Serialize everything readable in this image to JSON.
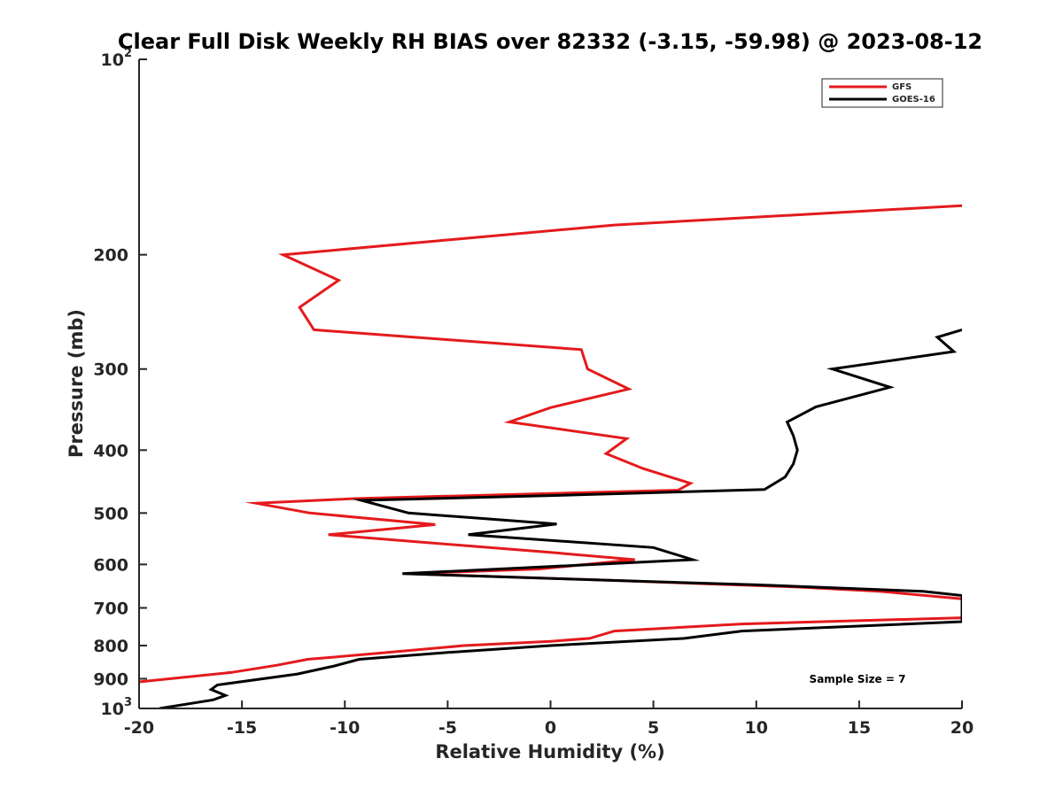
{
  "chart_data": {
    "type": "line",
    "title": "Clear Full Disk Weekly RH BIAS over 82332 (-3.15, -59.98) @ 2023-08-12",
    "xlabel": "Relative Humidity (%)",
    "ylabel": "Pressure (mb)",
    "xlim": [
      -20,
      20
    ],
    "ylim": [
      100,
      1000
    ],
    "y_scale": "log",
    "y_reversed": true,
    "grid": false,
    "legend_position": "top-right",
    "x_ticks": [
      {
        "value": -20,
        "label": "-20"
      },
      {
        "value": -15,
        "label": "-15"
      },
      {
        "value": -10,
        "label": "-10"
      },
      {
        "value": -5,
        "label": "-5"
      },
      {
        "value": 0,
        "label": "0"
      },
      {
        "value": 5,
        "label": "5"
      },
      {
        "value": 10,
        "label": "10"
      },
      {
        "value": 15,
        "label": "15"
      },
      {
        "value": 20,
        "label": "20"
      }
    ],
    "y_ticks": [
      {
        "value": 100,
        "base": "10",
        "exp": "2"
      },
      {
        "value": 200,
        "label": "200"
      },
      {
        "value": 300,
        "label": "300"
      },
      {
        "value": 400,
        "label": "400"
      },
      {
        "value": 500,
        "label": "500"
      },
      {
        "value": 600,
        "label": "600"
      },
      {
        "value": 700,
        "label": "700"
      },
      {
        "value": 800,
        "label": "800"
      },
      {
        "value": 900,
        "label": "900"
      },
      {
        "value": 1000,
        "base": "10",
        "exp": "3"
      }
    ],
    "series": [
      {
        "name": "GFS",
        "color": "#e41a1c",
        "points": [
          [
            20,
            168
          ],
          [
            3.1,
            180
          ],
          [
            -13.0,
            200
          ],
          [
            -10.3,
            219
          ],
          [
            -12.2,
            241
          ],
          [
            -11.5,
            261
          ],
          [
            1.5,
            280
          ],
          [
            1.8,
            300
          ],
          [
            3.8,
            322
          ],
          [
            0,
            344
          ],
          [
            -2.0,
            362
          ],
          [
            3.7,
            384
          ],
          [
            2.7,
            405
          ],
          [
            4.5,
            427
          ],
          [
            6.8,
            450
          ],
          [
            6.2,
            461
          ],
          [
            -9.5,
            475
          ],
          [
            -14.3,
            483
          ],
          [
            -11.7,
            500
          ],
          [
            -5.6,
            521
          ],
          [
            -10.8,
            540
          ],
          [
            0,
            575
          ],
          [
            4.1,
            590
          ],
          [
            -0.6,
            610
          ],
          [
            -7.0,
            620
          ],
          [
            3.0,
            635
          ],
          [
            12,
            650
          ],
          [
            16.0,
            660
          ],
          [
            20,
            678
          ],
          [
            20,
            725
          ],
          [
            9.3,
            741
          ],
          [
            3.1,
            760
          ],
          [
            1.9,
            780
          ],
          [
            0,
            788
          ],
          [
            -4.2,
            800
          ],
          [
            -8.9,
            825
          ],
          [
            -11.8,
            840
          ],
          [
            -13.3,
            858
          ],
          [
            -15.5,
            880
          ],
          [
            -20,
            910
          ]
        ]
      },
      {
        "name": "GOES-16",
        "color": "#000000",
        "points": [
          [
            20,
            261
          ],
          [
            18.8,
            268
          ],
          [
            19.6,
            282
          ],
          [
            13.7,
            300
          ],
          [
            16.5,
            320
          ],
          [
            12.9,
            343
          ],
          [
            11.5,
            362
          ],
          [
            11.8,
            380
          ],
          [
            12.0,
            400
          ],
          [
            11.8,
            420
          ],
          [
            11.4,
            440
          ],
          [
            10.4,
            460
          ],
          [
            0,
            470
          ],
          [
            -9.2,
            478
          ],
          [
            -6.9,
            500
          ],
          [
            0.3,
            520
          ],
          [
            -4.0,
            540
          ],
          [
            5.0,
            565
          ],
          [
            6.9,
            590
          ],
          [
            -7.2,
            620
          ],
          [
            3.0,
            635
          ],
          [
            10,
            645
          ],
          [
            18.1,
            660
          ],
          [
            20,
            670
          ],
          [
            20,
            735
          ],
          [
            9.3,
            760
          ],
          [
            6.5,
            780
          ],
          [
            0,
            800
          ],
          [
            -5,
            820
          ],
          [
            -9.3,
            840
          ],
          [
            -10.5,
            860
          ],
          [
            -12.3,
            885
          ],
          [
            -16.2,
            920
          ],
          [
            -16.5,
            935
          ],
          [
            -15.8,
            955
          ],
          [
            -16.4,
            970
          ],
          [
            -19.0,
            1000
          ]
        ]
      }
    ],
    "annotations": [
      {
        "text": "Sample Size = 7"
      }
    ]
  }
}
